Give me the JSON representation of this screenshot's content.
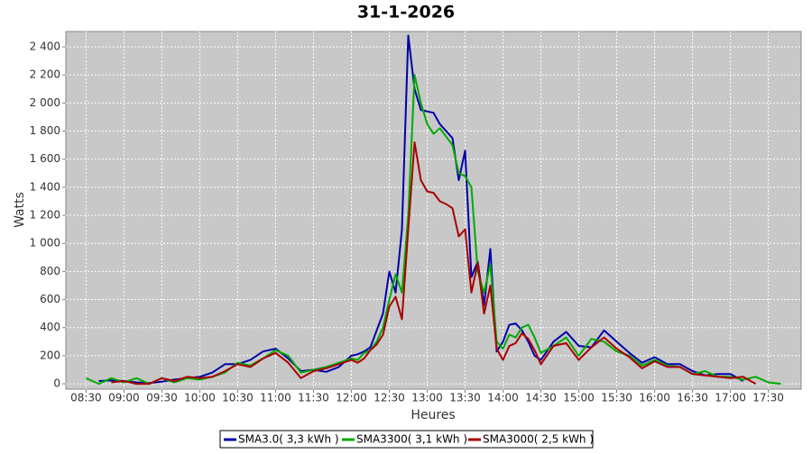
{
  "chart_data": {
    "type": "line",
    "title": "31-1-2026",
    "x_label": "Heures",
    "y_label": "Watts",
    "x": [
      "08:30",
      "08:40",
      "08:50",
      "09:00",
      "09:10",
      "09:20",
      "09:30",
      "09:40",
      "09:50",
      "10:00",
      "10:10",
      "10:20",
      "10:30",
      "10:40",
      "10:50",
      "11:00",
      "11:10",
      "11:20",
      "11:30",
      "11:40",
      "11:50",
      "12:00",
      "12:05",
      "12:10",
      "12:15",
      "12:20",
      "12:25",
      "12:30",
      "12:35",
      "12:40",
      "12:45",
      "12:50",
      "12:55",
      "13:00",
      "13:05",
      "13:10",
      "13:15",
      "13:20",
      "13:25",
      "13:30",
      "13:35",
      "13:40",
      "13:45",
      "13:50",
      "13:55",
      "14:00",
      "14:05",
      "14:10",
      "14:15",
      "14:20",
      "14:25",
      "14:30",
      "14:40",
      "14:50",
      "15:00",
      "15:10",
      "15:20",
      "15:30",
      "15:40",
      "15:50",
      "16:00",
      "16:10",
      "16:20",
      "16:30",
      "16:40",
      "16:50",
      "17:00",
      "17:10",
      "17:20",
      "17:30",
      "17:40",
      "17:50"
    ],
    "series": [
      {
        "name": "SMA3.0( 3,3 kWh )",
        "color": "#0000aa",
        "values": [
          null,
          20,
          25,
          20,
          10,
          5,
          15,
          30,
          40,
          50,
          80,
          140,
          140,
          170,
          230,
          250,
          180,
          90,
          100,
          85,
          120,
          200,
          210,
          230,
          260,
          380,
          500,
          800,
          650,
          1100,
          2480,
          2100,
          1950,
          1940,
          1930,
          1850,
          1800,
          1750,
          1450,
          1660,
          760,
          870,
          560,
          960,
          230,
          300,
          420,
          430,
          380,
          300,
          200,
          170,
          300,
          370,
          270,
          260,
          380,
          300,
          220,
          150,
          190,
          140,
          140,
          90,
          60,
          70,
          70,
          20,
          null,
          null,
          null,
          null
        ]
      },
      {
        "name": "SMA3300( 3,1 kWh )",
        "color": "#00aa00",
        "values": [
          40,
          0,
          40,
          10,
          40,
          0,
          40,
          10,
          40,
          30,
          50,
          80,
          150,
          130,
          180,
          240,
          200,
          80,
          100,
          120,
          150,
          180,
          170,
          220,
          240,
          300,
          400,
          600,
          780,
          650,
          1200,
          2200,
          2000,
          1850,
          1780,
          1820,
          1760,
          1700,
          1500,
          1480,
          1400,
          800,
          650,
          850,
          300,
          250,
          350,
          330,
          400,
          420,
          330,
          220,
          270,
          330,
          200,
          320,
          300,
          230,
          200,
          130,
          170,
          130,
          120,
          70,
          90,
          50,
          50,
          30,
          50,
          10,
          0,
          null
        ]
      },
      {
        "name": "SMA3000( 2,5 kWh )",
        "color": "#aa0000",
        "values": [
          null,
          null,
          10,
          20,
          0,
          0,
          40,
          20,
          50,
          40,
          50,
          90,
          140,
          120,
          180,
          220,
          150,
          40,
          90,
          110,
          140,
          170,
          150,
          180,
          240,
          280,
          350,
          550,
          620,
          460,
          1100,
          1720,
          1450,
          1370,
          1360,
          1300,
          1280,
          1250,
          1050,
          1100,
          650,
          860,
          500,
          700,
          250,
          170,
          270,
          290,
          360,
          320,
          240,
          140,
          270,
          290,
          170,
          260,
          330,
          250,
          190,
          110,
          160,
          120,
          120,
          70,
          60,
          50,
          40,
          50,
          0,
          null,
          null,
          null
        ]
      }
    ],
    "xlim": [
      "08:14",
      "17:56"
    ],
    "xticks": [
      "08:30",
      "09:00",
      "09:30",
      "10:00",
      "10:30",
      "11:00",
      "11:30",
      "12:00",
      "12:30",
      "13:00",
      "13:30",
      "14:00",
      "14:30",
      "15:00",
      "15:30",
      "16:00",
      "16:30",
      "17:00",
      "17:30"
    ],
    "ylim": [
      -38,
      2509
    ],
    "yticks": [
      0,
      200,
      400,
      600,
      800,
      {
        "value": 1000,
        "label": "1 000"
      },
      {
        "value": 1200,
        "label": "1 200"
      },
      {
        "value": 1400,
        "label": "1 400"
      },
      {
        "value": 1600,
        "label": "1 600"
      },
      {
        "value": 1800,
        "label": "1 800"
      },
      {
        "value": 2000,
        "label": "2 000"
      },
      {
        "value": 2200,
        "label": "2 200"
      },
      {
        "value": 2400,
        "label": "2 400"
      }
    ],
    "grid": true
  }
}
